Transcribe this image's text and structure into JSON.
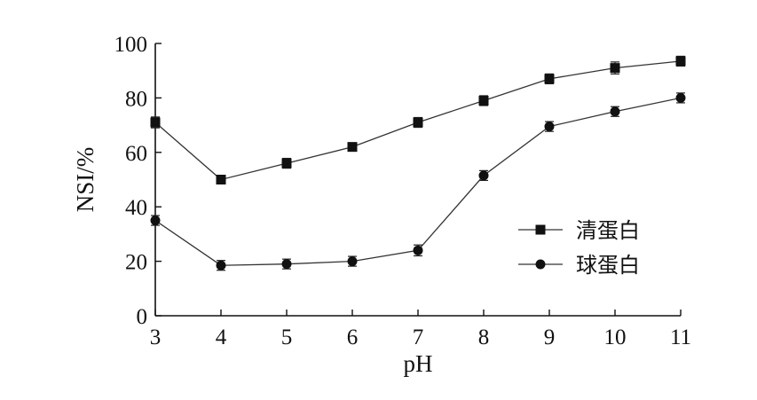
{
  "chart_data": {
    "type": "line",
    "title": "",
    "xlabel": "pH",
    "ylabel": "NSI/%",
    "x": [
      3,
      4,
      5,
      6,
      7,
      8,
      9,
      10,
      11
    ],
    "xlim": [
      3,
      11
    ],
    "ylim": [
      0,
      100
    ],
    "xticks": [
      3,
      4,
      5,
      6,
      7,
      8,
      9,
      10,
      11
    ],
    "yticks": [
      0,
      20,
      40,
      60,
      80,
      100
    ],
    "grid": false,
    "legend_position": "right",
    "series": [
      {
        "name": "清蛋白",
        "marker": "square",
        "values": [
          71,
          50,
          56,
          62,
          71,
          79,
          87,
          91,
          93.5
        ],
        "errors": [
          2,
          1.5,
          1.8,
          1.5,
          1.8,
          1.8,
          1.8,
          2.2,
          1.8
        ]
      },
      {
        "name": "球蛋白",
        "marker": "circle",
        "values": [
          35,
          18.5,
          19,
          20,
          24,
          51.5,
          69.5,
          75,
          80
        ],
        "errors": [
          1.8,
          1.8,
          1.8,
          1.8,
          2,
          1.8,
          1.8,
          1.8,
          1.8
        ]
      }
    ],
    "colors": {
      "line": "#333333",
      "marker": "#111111",
      "axis": "#111111"
    }
  }
}
